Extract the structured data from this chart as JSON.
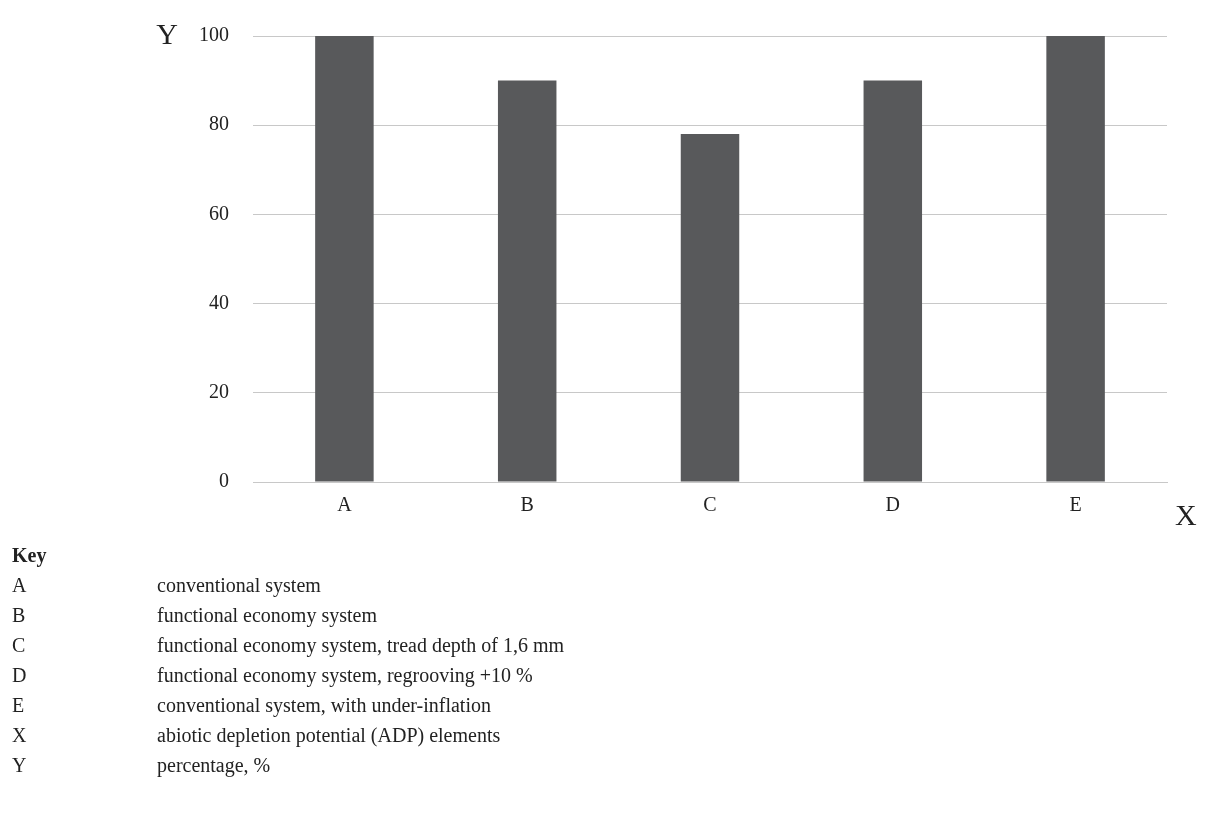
{
  "chart_data": {
    "type": "bar",
    "xlabel": "X",
    "ylabel": "Y",
    "categories": [
      "A",
      "B",
      "C",
      "D",
      "E"
    ],
    "values": [
      100,
      90,
      78,
      90,
      100
    ],
    "color": "#58595b",
    "ylim": [
      0,
      100
    ],
    "yticks": [
      0,
      20,
      40,
      60,
      80,
      100
    ],
    "grid": "y",
    "legend": false,
    "annotations": [
      "Key",
      "A conventional system",
      "B functional economy system",
      "C functional economy system, tread depth of 1,6 mm",
      "D functional economy system, regrooving +10 %",
      "E conventional system, with under-inflation",
      "X abiotic depletion potential (ADP) elements",
      "Y percentage, %"
    ]
  }
}
